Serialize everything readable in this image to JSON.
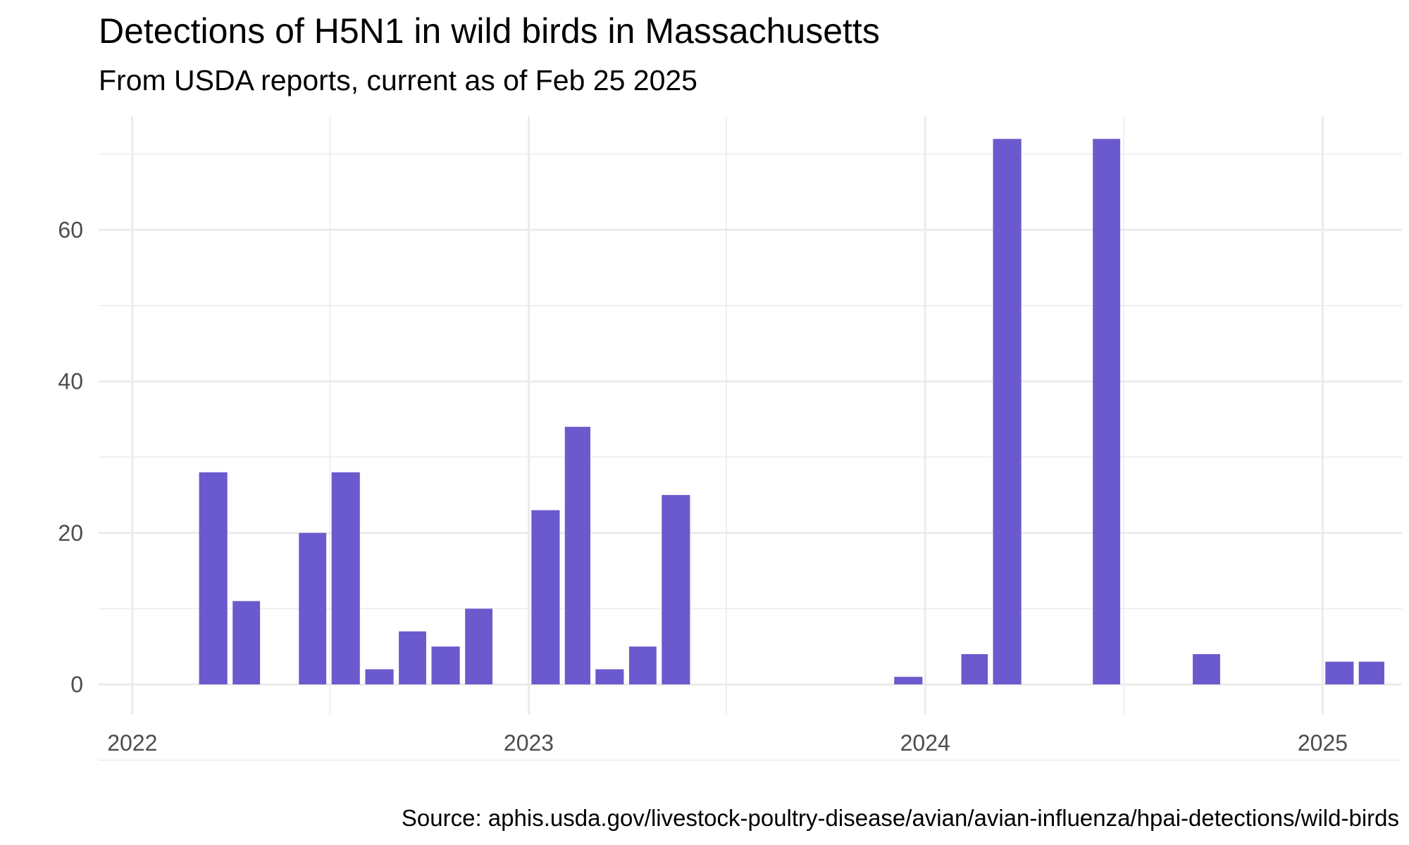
{
  "chart_data": {
    "type": "bar",
    "title": "Detections of H5N1 in wild birds in Massachusetts",
    "subtitle": "From USDA reports, current as of Feb 25 2025",
    "caption": "Source: aphis.usda.gov/livestock-poultry-disease/avian/avian-influenza/hpai-detections/wild-birds",
    "xlabel": "",
    "ylabel": "",
    "x_axis": {
      "type": "date",
      "ticks": [
        "2022",
        "2023",
        "2024",
        "2025"
      ]
    },
    "y_axis": {
      "ticks": [
        0,
        20,
        40,
        60
      ],
      "ylim": [
        -4,
        75
      ]
    },
    "grid": true,
    "bar_color": "#6a5acd",
    "series": [
      {
        "x": [
          "2022-03",
          "2022-04",
          "2022-06",
          "2022-07",
          "2022-08",
          "2022-09",
          "2022-10",
          "2022-11",
          "2023-01",
          "2023-02",
          "2023-03",
          "2023-04",
          "2023-05",
          "2023-12",
          "2024-02",
          "2024-03",
          "2024-06",
          "2024-09",
          "2025-01",
          "2025-02"
        ],
        "values": [
          28,
          11,
          20,
          28,
          2,
          7,
          5,
          10,
          23,
          34,
          2,
          5,
          25,
          1,
          4,
          72,
          72,
          4,
          3,
          3
        ]
      }
    ]
  }
}
